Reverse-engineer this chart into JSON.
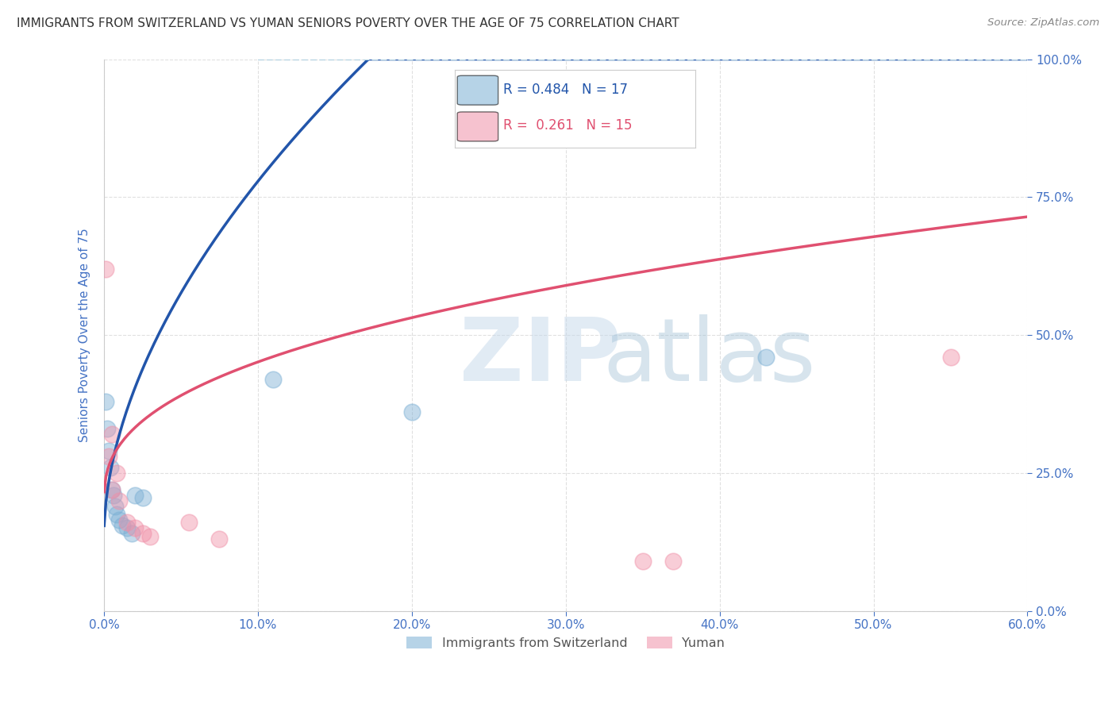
{
  "title": "IMMIGRANTS FROM SWITZERLAND VS YUMAN SENIORS POVERTY OVER THE AGE OF 75 CORRELATION CHART",
  "source": "Source: ZipAtlas.com",
  "xlabel_vals": [
    0.0,
    10.0,
    20.0,
    30.0,
    40.0,
    50.0,
    60.0
  ],
  "ylabel_vals": [
    0.0,
    25.0,
    50.0,
    75.0,
    100.0
  ],
  "xlim": [
    0.0,
    60.0
  ],
  "ylim": [
    0.0,
    100.0
  ],
  "ylabel": "Seniors Poverty Over the Age of 75",
  "legend_entries": [
    {
      "label": "Immigrants from Switzerland",
      "R": "0.484",
      "N": "17"
    },
    {
      "label": "Yuman",
      "R": "0.261",
      "N": "15"
    }
  ],
  "blue_points_x": [
    0.1,
    0.2,
    0.3,
    0.4,
    0.5,
    0.6,
    0.7,
    0.8,
    1.0,
    1.2,
    1.5,
    1.8,
    2.0,
    2.5,
    11.0,
    20.0,
    43.0
  ],
  "blue_points_y": [
    38.0,
    33.0,
    29.0,
    26.0,
    22.0,
    21.0,
    19.0,
    17.5,
    16.5,
    15.5,
    15.0,
    14.0,
    21.0,
    20.5,
    42.0,
    36.0,
    46.0
  ],
  "pink_points_x": [
    0.1,
    0.3,
    0.5,
    0.5,
    1.0,
    1.5,
    2.0,
    2.5,
    3.0,
    5.5,
    7.5,
    35.0,
    37.0,
    55.0,
    0.8
  ],
  "pink_points_y": [
    62.0,
    28.0,
    22.0,
    32.0,
    20.0,
    16.0,
    15.0,
    14.0,
    13.5,
    16.0,
    13.0,
    9.0,
    9.0,
    46.0,
    25.0
  ],
  "watermark_zip": "ZIP",
  "watermark_atlas": "atlas",
  "title_color": "#333333",
  "source_color": "#888888",
  "axis_tick_color": "#4472c4",
  "ylabel_color": "#4472c4",
  "blue_scatter_color": "#7bafd4",
  "pink_scatter_color": "#f090a8",
  "blue_line_color": "#2255aa",
  "pink_line_color": "#e05070",
  "dashed_line_color": "#aaccdd",
  "grid_color": "#e0e0e0",
  "grid_style": "--",
  "background_color": "#ffffff",
  "blue_curve_a": 18.0,
  "blue_curve_b": 0.55,
  "blue_curve_c": 14.0,
  "pink_curve_a": 10.0,
  "pink_curve_b": 0.4,
  "pink_curve_c": 20.0,
  "dashed_curve_a": 20.0,
  "dashed_curve_b": 0.75,
  "dashed_curve_c": 18.0
}
